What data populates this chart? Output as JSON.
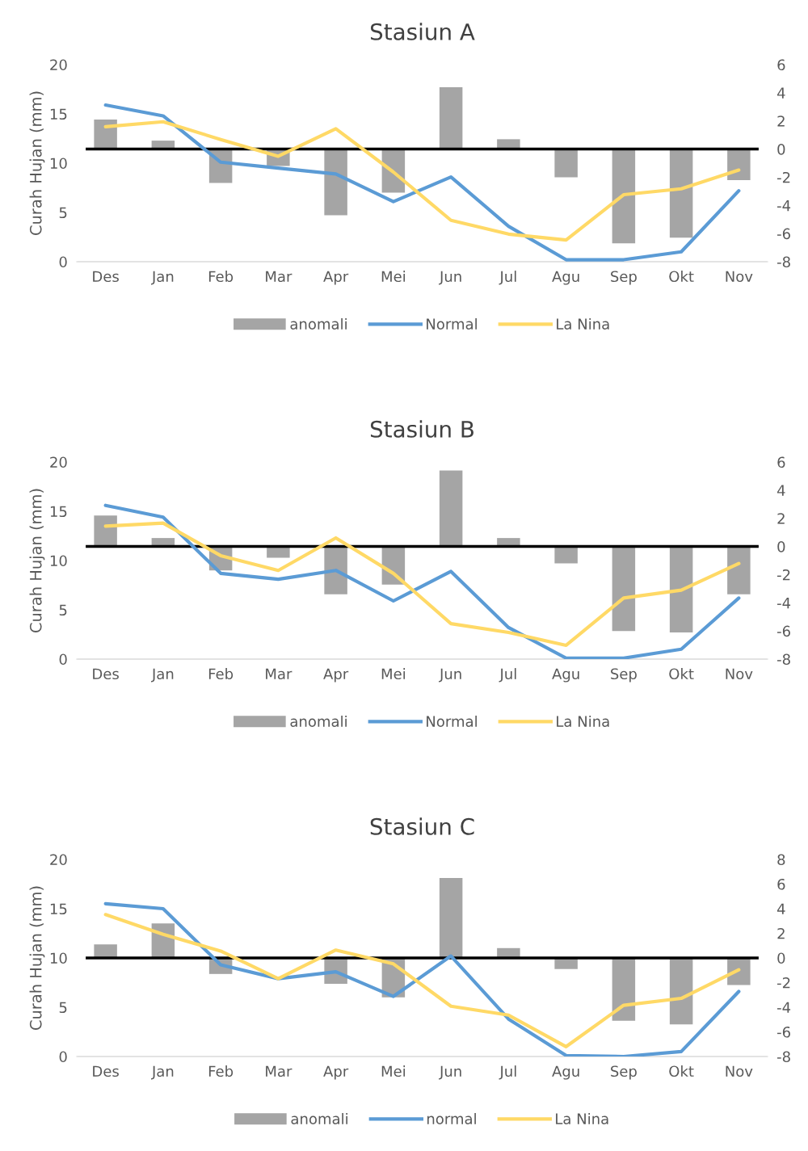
{
  "chart_data": [
    {
      "type": "bar",
      "title": "Stasiun A",
      "ylabel": "Curah Hujan (mm)",
      "categories": [
        "Des",
        "Jan",
        "Feb",
        "Mar",
        "Apr",
        "Mei",
        "Jun",
        "Jul",
        "Agu",
        "Sep",
        "Okt",
        "Nov"
      ],
      "ylim": [
        0,
        20
      ],
      "yticks": [
        0,
        5,
        10,
        15,
        20
      ],
      "y2lim": [
        -8,
        6
      ],
      "y2ticks": [
        -8,
        -6,
        -4,
        -2,
        0,
        2,
        4,
        6
      ],
      "grid": false,
      "legend": "bottom",
      "ref_lines": [
        {
          "axis": "y2",
          "value": 0,
          "color": "#000000"
        }
      ],
      "series": [
        {
          "name": "anomali",
          "axis": "y2",
          "color": "#a5a5a5",
          "values": [
            2.1,
            0.6,
            -2.4,
            -1.2,
            -4.7,
            -3.1,
            4.4,
            0.7,
            -2.0,
            -6.7,
            -6.3,
            -2.2
          ]
        },
        {
          "name": "Normal",
          "type": "line",
          "color": "#5b9bd5",
          "values": [
            15.9,
            14.8,
            10.1,
            9.5,
            8.9,
            6.1,
            8.6,
            3.6,
            0.2,
            0.2,
            1.0,
            7.2
          ]
        },
        {
          "name": "La Nina",
          "type": "line",
          "color": "#ffd966",
          "values": [
            13.7,
            14.2,
            12.4,
            10.7,
            13.5,
            9.1,
            4.2,
            2.8,
            2.2,
            6.8,
            7.4,
            9.3
          ]
        }
      ]
    },
    {
      "type": "bar",
      "title": "Stasiun B",
      "ylabel": "Curah Hujan (mm)",
      "categories": [
        "Des",
        "Jan",
        "Feb",
        "Mar",
        "Apr",
        "Mei",
        "Jun",
        "Jul",
        "Agu",
        "Sep",
        "Okt",
        "Nov"
      ],
      "ylim": [
        0,
        20
      ],
      "yticks": [
        0,
        5,
        10,
        15,
        20
      ],
      "y2lim": [
        -8,
        6
      ],
      "y2ticks": [
        -8,
        -6,
        -4,
        -2,
        0,
        2,
        4,
        6
      ],
      "grid": false,
      "legend": "bottom",
      "ref_lines": [
        {
          "axis": "y2",
          "value": 0,
          "color": "#000000"
        }
      ],
      "series": [
        {
          "name": "anomali",
          "axis": "y2",
          "color": "#a5a5a5",
          "values": [
            2.2,
            0.6,
            -1.7,
            -0.8,
            -3.4,
            -2.7,
            5.4,
            0.6,
            -1.2,
            -6.0,
            -6.1,
            -3.4
          ]
        },
        {
          "name": "Normal",
          "type": "line",
          "color": "#5b9bd5",
          "values": [
            15.6,
            14.4,
            8.7,
            8.1,
            9.0,
            5.9,
            8.9,
            3.2,
            0.1,
            0.1,
            1.0,
            6.2
          ]
        },
        {
          "name": "La Nina",
          "type": "line",
          "color": "#ffd966",
          "values": [
            13.5,
            13.8,
            10.5,
            9.0,
            12.3,
            8.7,
            3.6,
            2.7,
            1.4,
            6.2,
            7.0,
            9.7
          ]
        }
      ]
    },
    {
      "type": "bar",
      "title": "Stasiun C",
      "ylabel": "Curah Hujan (mm)",
      "categories": [
        "Des",
        "Jan",
        "Feb",
        "Mar",
        "Apr",
        "Mei",
        "Jun",
        "Jul",
        "Agu",
        "Sep",
        "Okt",
        "Nov"
      ],
      "ylim": [
        0,
        20
      ],
      "yticks": [
        0,
        5,
        10,
        15,
        20
      ],
      "y2lim": [
        -8,
        8
      ],
      "y2ticks": [
        -8,
        -6,
        -4,
        -2,
        0,
        2,
        4,
        6,
        8
      ],
      "grid": false,
      "legend": "bottom",
      "ref_lines": [
        {
          "axis": "y2",
          "value": 0,
          "color": "#000000"
        }
      ],
      "series": [
        {
          "name": "anomali",
          "axis": "y2",
          "color": "#a5a5a5",
          "values": [
            1.1,
            2.8,
            -1.3,
            0,
            -2.1,
            -3.2,
            6.5,
            0.8,
            -0.9,
            -5.1,
            -5.4,
            -2.2
          ]
        },
        {
          "name": "normal",
          "type": "line",
          "color": "#5b9bd5",
          "values": [
            15.5,
            15.0,
            9.3,
            7.9,
            8.6,
            6.1,
            10.2,
            3.8,
            0.1,
            0.0,
            0.5,
            6.6
          ]
        },
        {
          "name": "La Nina",
          "type": "line",
          "color": "#ffd966",
          "values": [
            14.4,
            12.4,
            10.7,
            7.9,
            10.8,
            9.4,
            5.1,
            4.2,
            1.0,
            5.2,
            5.9,
            8.8
          ]
        }
      ]
    }
  ]
}
